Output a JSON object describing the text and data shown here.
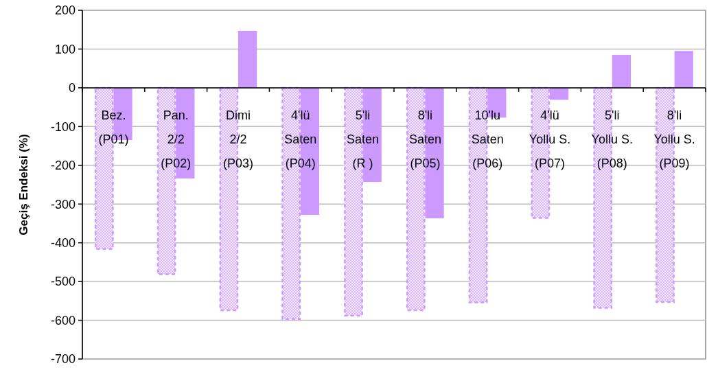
{
  "chart_data": {
    "type": "bar",
    "ylabel": "Geçiş Endeksi (%)",
    "categories": [
      "Bez.\n(P01)",
      "Pan.\n2/2\n(P02)",
      "Dimi\n2/2\n(P03)",
      "4'lü\nSaten\n(P04)",
      "5'li\nSaten\n(R )",
      "8'li\nSaten\n(P05)",
      "10'lu\nSaten\n(P06)",
      "4'lü\nYollu S.\n(P07)",
      "5'li\nYollu S.\n(P08)",
      "8'li\nYollu S.\n(P09)"
    ],
    "series": [
      {
        "color": "#cc99ff",
        "line_style": "dashed",
        "values": [
          -416,
          -481,
          -574,
          -597,
          -588,
          -574,
          -554,
          -336,
          -568,
          -553
        ]
      },
      {
        "color": "#cc99ff",
        "values": [
          -135,
          -234,
          147,
          -328,
          -243,
          -337,
          -77,
          -31,
          85,
          95
        ]
      }
    ],
    "ylim": [
      -700,
      200
    ],
    "yticks": [
      -700,
      -600,
      -500,
      -400,
      -300,
      -200,
      -100,
      0,
      100,
      200
    ],
    "grid": "y"
  }
}
